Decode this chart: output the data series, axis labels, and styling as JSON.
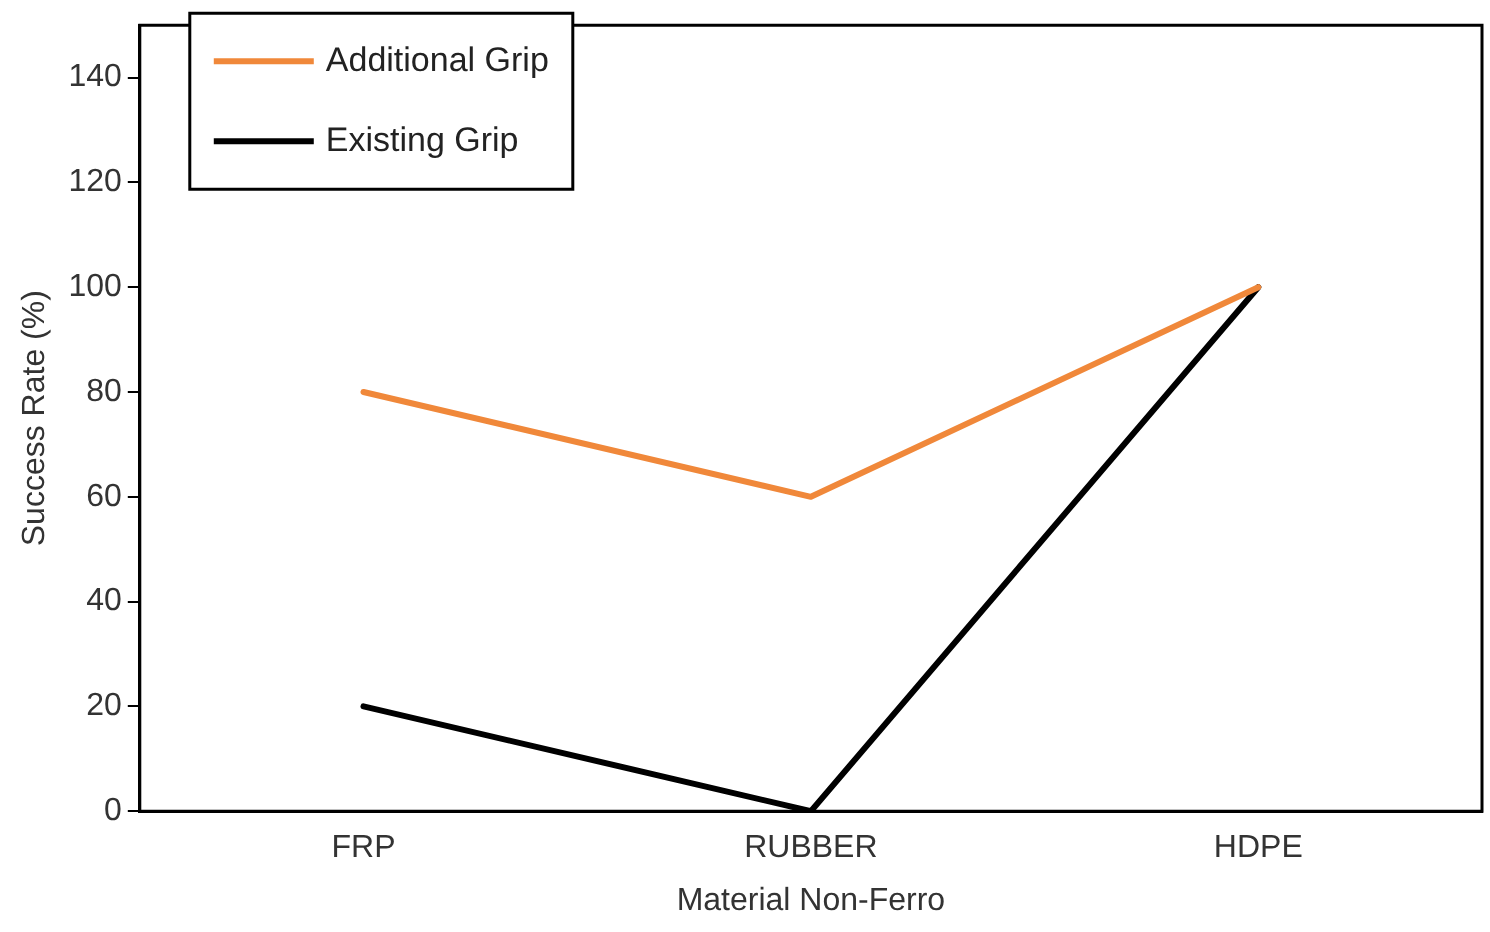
{
  "chart_data": {
    "type": "line",
    "xlabel": "Material Non-Ferro",
    "ylabel": "Success Rate (%)",
    "categories": [
      "FRP",
      "RUBBER",
      "HDPE"
    ],
    "series": [
      {
        "name": "Additional Grip",
        "color": "#f0883a",
        "values": [
          80,
          60,
          100
        ]
      },
      {
        "name": "Existing Grip",
        "color": "#000000",
        "values": [
          20,
          0,
          100
        ]
      }
    ],
    "ylim": [
      0,
      150
    ],
    "yticks": [
      0,
      20,
      40,
      60,
      80,
      100,
      120,
      140
    ],
    "grid": false,
    "legend": "top left",
    "marker": "none",
    "line_style": "solid"
  }
}
